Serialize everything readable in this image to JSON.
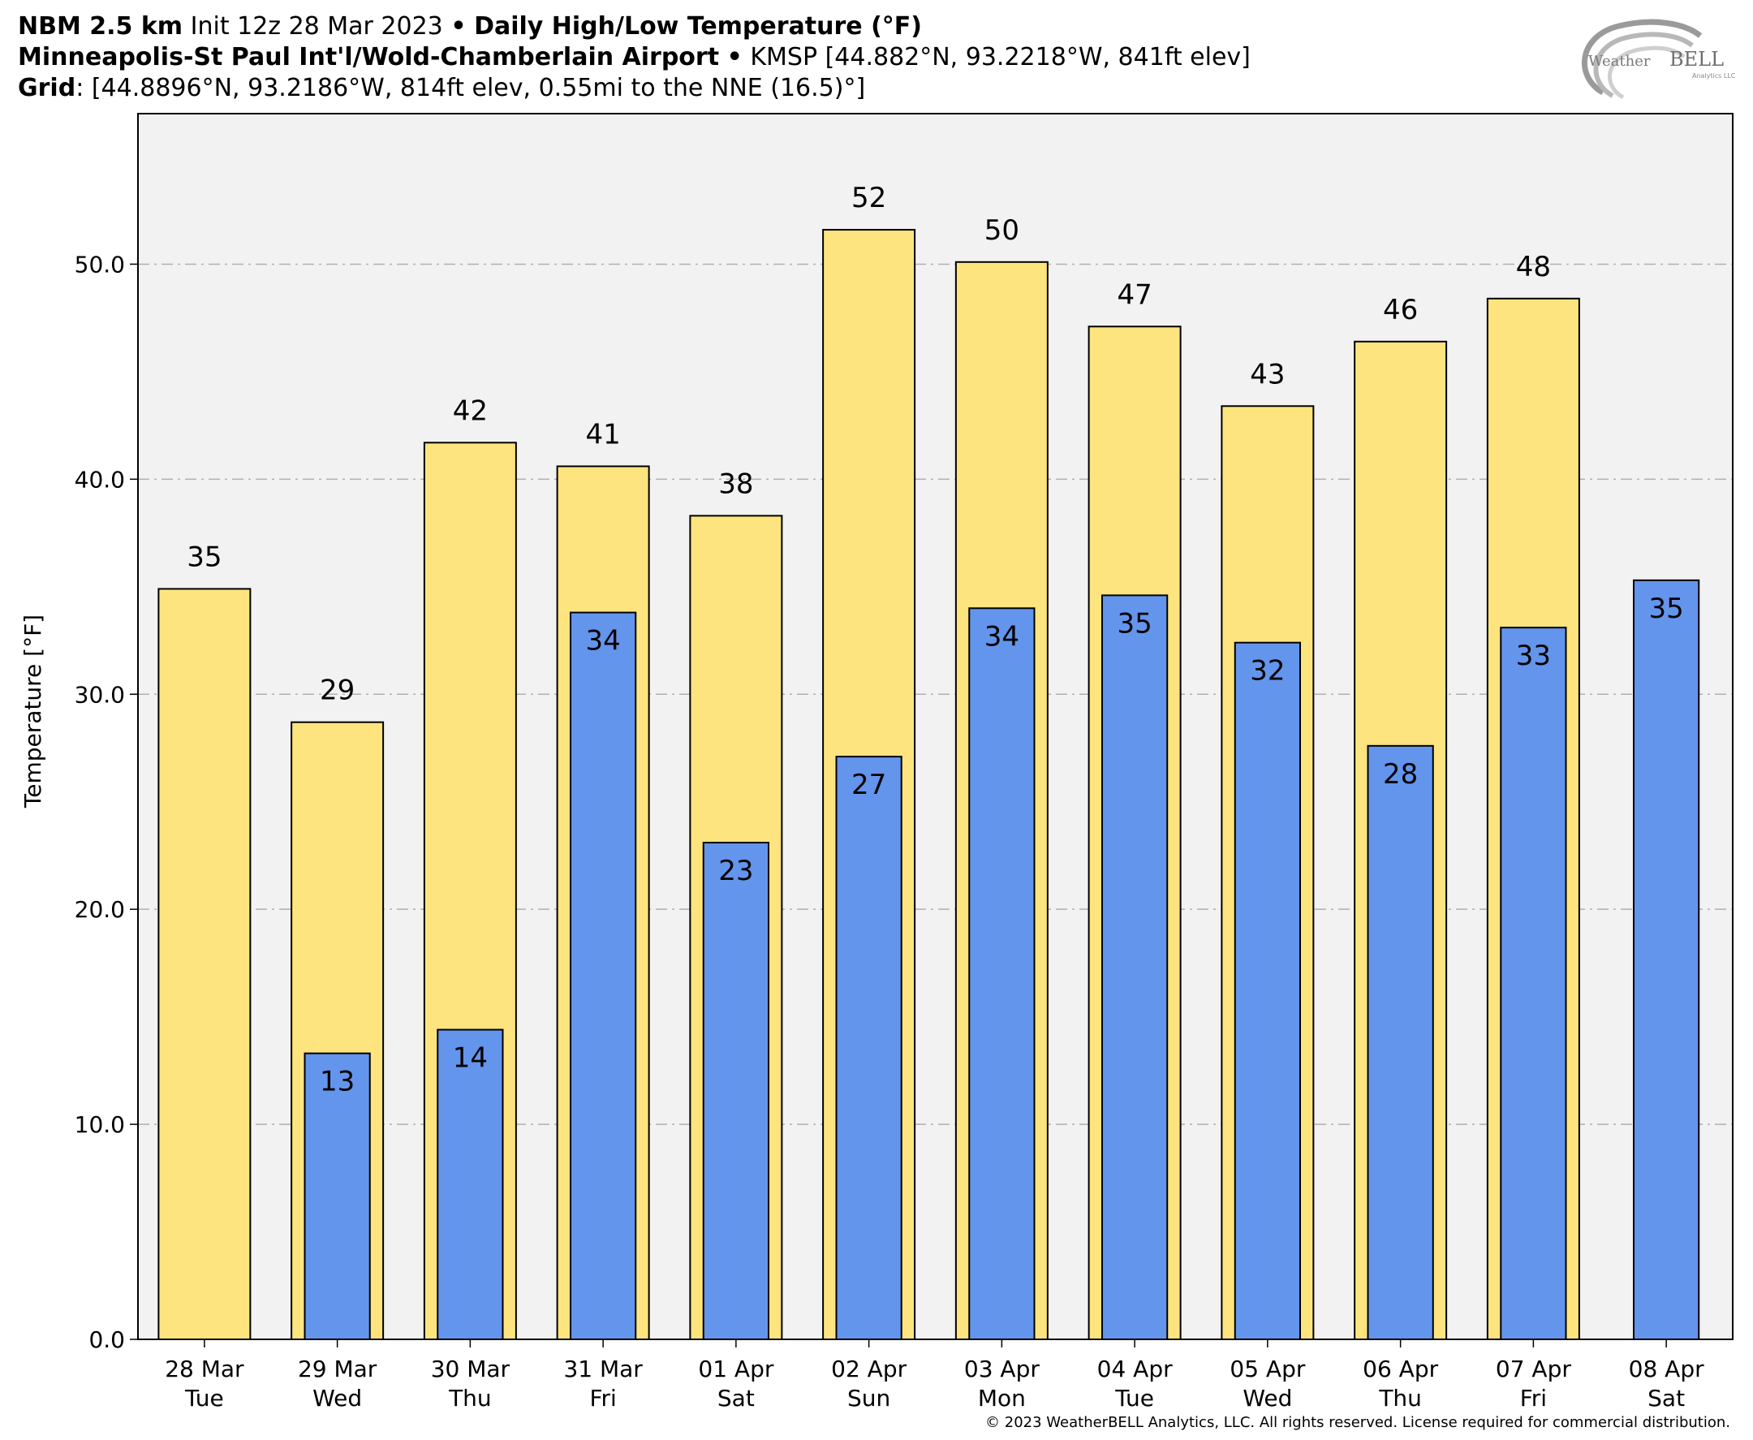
{
  "header": {
    "line1": {
      "model": "NBM 2.5 km",
      "init": "Init 12z 28 Mar 2023",
      "sep": "•",
      "product": "Daily High/Low Temperature (°F)"
    },
    "line2": {
      "station": "Minneapolis-St Paul Int'l/Wold-Chamberlain Airport",
      "sep": "•",
      "info": "KMSP [44.882°N, 93.2218°W, 841ft elev]"
    },
    "line3": {
      "label": "Grid",
      "info": ": [44.8896°N, 93.2186°W, 814ft elev, 0.55mi to the NNE (16.5)°]"
    }
  },
  "logo": {
    "text_left": "Weather",
    "text_right": "BELL",
    "sub": "Analytics LLC"
  },
  "copyright": "© 2023 WeatherBELL Analytics, LLC. All rights reserved. License required for commercial distribution.",
  "colors": {
    "high": "#fde47f",
    "low": "#6495ed",
    "plot_bg": "#f2f2f2",
    "grid": "#b0b0b0"
  },
  "chart_data": {
    "type": "bar",
    "ylabel": "Temperature [°F]",
    "ylim": [
      0,
      57
    ],
    "yticks": [
      0,
      10,
      20,
      30,
      40,
      50
    ],
    "ytick_labels": [
      "0.0",
      "10.0",
      "20.0",
      "30.0",
      "40.0",
      "50.0"
    ],
    "grid": true,
    "categories": [
      [
        "28 Mar",
        "Tue"
      ],
      [
        "29 Mar",
        "Wed"
      ],
      [
        "30 Mar",
        "Thu"
      ],
      [
        "31 Mar",
        "Fri"
      ],
      [
        "01 Apr",
        "Sat"
      ],
      [
        "02 Apr",
        "Sun"
      ],
      [
        "03 Apr",
        "Mon"
      ],
      [
        "04 Apr",
        "Tue"
      ],
      [
        "05 Apr",
        "Wed"
      ],
      [
        "06 Apr",
        "Thu"
      ],
      [
        "07 Apr",
        "Fri"
      ],
      [
        "08 Apr",
        "Sat"
      ]
    ],
    "high": {
      "values": [
        34.9,
        28.7,
        41.7,
        40.6,
        38.3,
        51.6,
        50.1,
        47.1,
        43.4,
        46.4,
        48.4,
        null
      ],
      "labels": [
        "35",
        "29",
        "42",
        "41",
        "38",
        "52",
        "50",
        "47",
        "43",
        "46",
        "48",
        ""
      ]
    },
    "low": {
      "values": [
        null,
        13.3,
        14.4,
        33.8,
        23.1,
        27.1,
        34.0,
        34.6,
        32.4,
        27.6,
        33.1,
        35.3
      ],
      "labels": [
        "",
        "13",
        "14",
        "34",
        "23",
        "27",
        "34",
        "35",
        "32",
        "28",
        "33",
        "35"
      ]
    }
  }
}
